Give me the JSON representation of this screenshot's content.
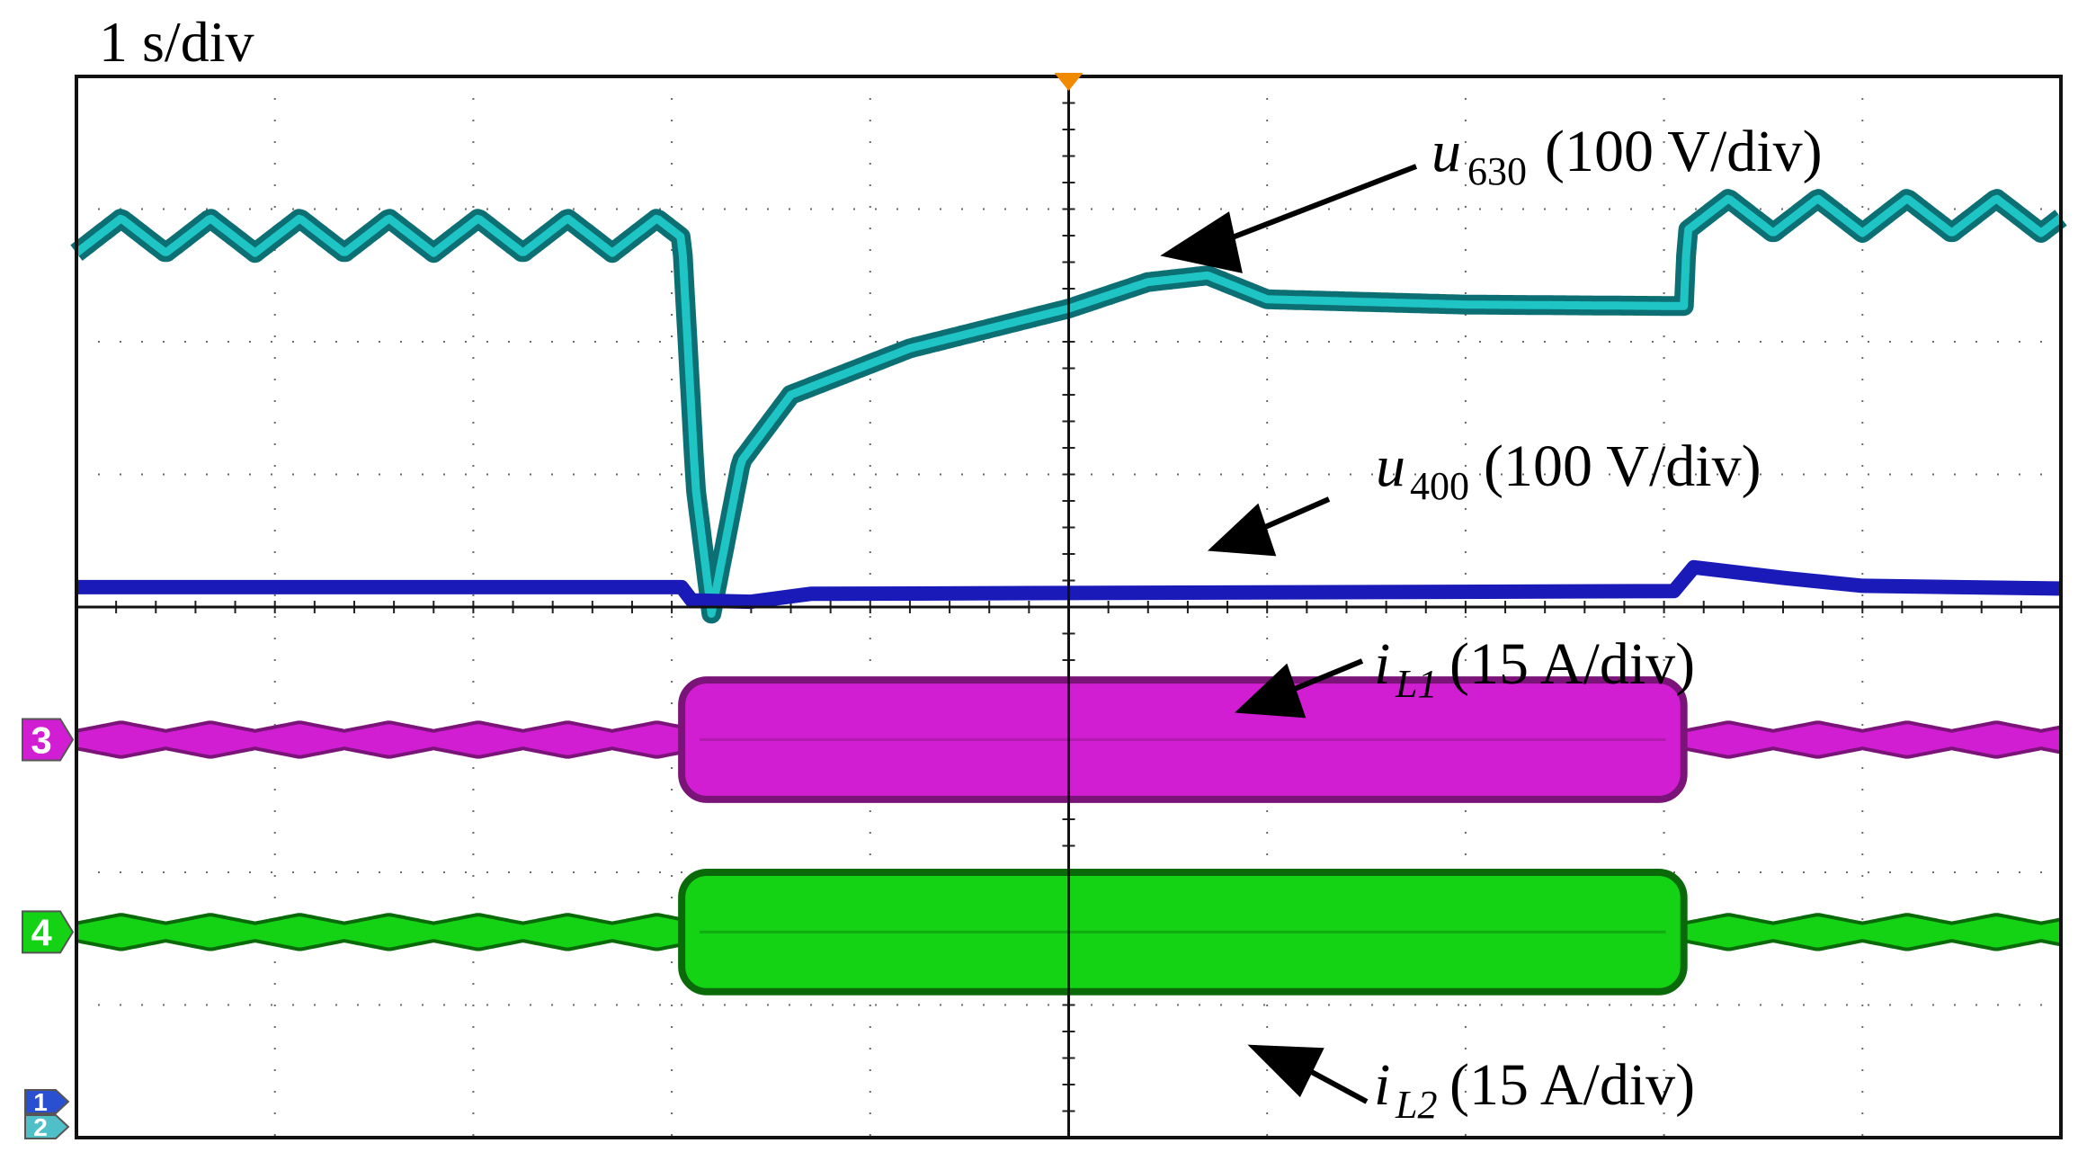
{
  "header": {
    "timebase": "1 s/div"
  },
  "colors": {
    "u630": "#1fc4c4",
    "u630_edge": "#0b6f73",
    "u400": "#1a1ab8",
    "iL1": "#d21ed2",
    "iL1_edge": "#7a1478",
    "iL2": "#14d214",
    "iL2_edge": "#0a6a0a",
    "grid": "#6a6a6a",
    "trigger": "#f08a00",
    "ch1_marker": "#2a4fd0",
    "ch2_marker": "#4fc0c8"
  },
  "markers": {
    "ch3": "3",
    "ch4": "4",
    "ch1": "1",
    "ch2": "2"
  },
  "chart_data": {
    "type": "line",
    "title": "",
    "xlabel": "",
    "ylabel": "",
    "grid": true,
    "x_divisions": 10,
    "y_divisions": 8,
    "xlim": [
      0,
      10
    ],
    "x_unit": "s",
    "series": [
      {
        "key": "u630",
        "label_main": "u",
        "label_sub": "630",
        "scale": "(100 V/div)",
        "offset_div": 0,
        "ripple_amp_div": 0.13,
        "ripple_period_div": 0.45,
        "points": [
          [
            0,
            6.8
          ],
          [
            3.05,
            6.8
          ],
          [
            3.12,
            4.9
          ],
          [
            3.2,
            3.95
          ],
          [
            3.35,
            5.1
          ],
          [
            3.6,
            5.6
          ],
          [
            4.2,
            5.95
          ],
          [
            5.0,
            6.25
          ],
          [
            5.4,
            6.45
          ],
          [
            5.7,
            6.5
          ],
          [
            6.0,
            6.32
          ],
          [
            7.0,
            6.28
          ],
          [
            8.0,
            6.27
          ],
          [
            8.1,
            6.27
          ],
          [
            8.12,
            6.95
          ],
          [
            10,
            6.95
          ]
        ],
        "ripple_ranges": [
          [
            0,
            3.05
          ],
          [
            8.12,
            10
          ]
        ]
      },
      {
        "key": "u400",
        "label_main": "u",
        "label_sub": "400",
        "scale": "(100 V/div)",
        "offset_div": 0,
        "points": [
          [
            0,
            4.15
          ],
          [
            3.05,
            4.15
          ],
          [
            3.1,
            4.05
          ],
          [
            3.4,
            4.04
          ],
          [
            3.7,
            4.1
          ],
          [
            8.05,
            4.12
          ],
          [
            8.15,
            4.3
          ],
          [
            8.6,
            4.22
          ],
          [
            9.0,
            4.16
          ],
          [
            10,
            4.14
          ]
        ]
      },
      {
        "key": "iL1",
        "label_main": "i",
        "label_sub": "L1",
        "scale": "(15 A/div)",
        "offset_div": 3,
        "band_low_halfwidth_div": 0.12,
        "band_high_halfwidth_div": 0.45,
        "high_range": [
          3.05,
          8.1
        ]
      },
      {
        "key": "iL2",
        "label_main": "i",
        "label_sub": "L2",
        "scale": "(15 A/div)",
        "offset_div": 1.55,
        "band_low_halfwidth_div": 0.12,
        "band_high_halfwidth_div": 0.45,
        "high_range": [
          3.05,
          8.1
        ]
      }
    ]
  }
}
